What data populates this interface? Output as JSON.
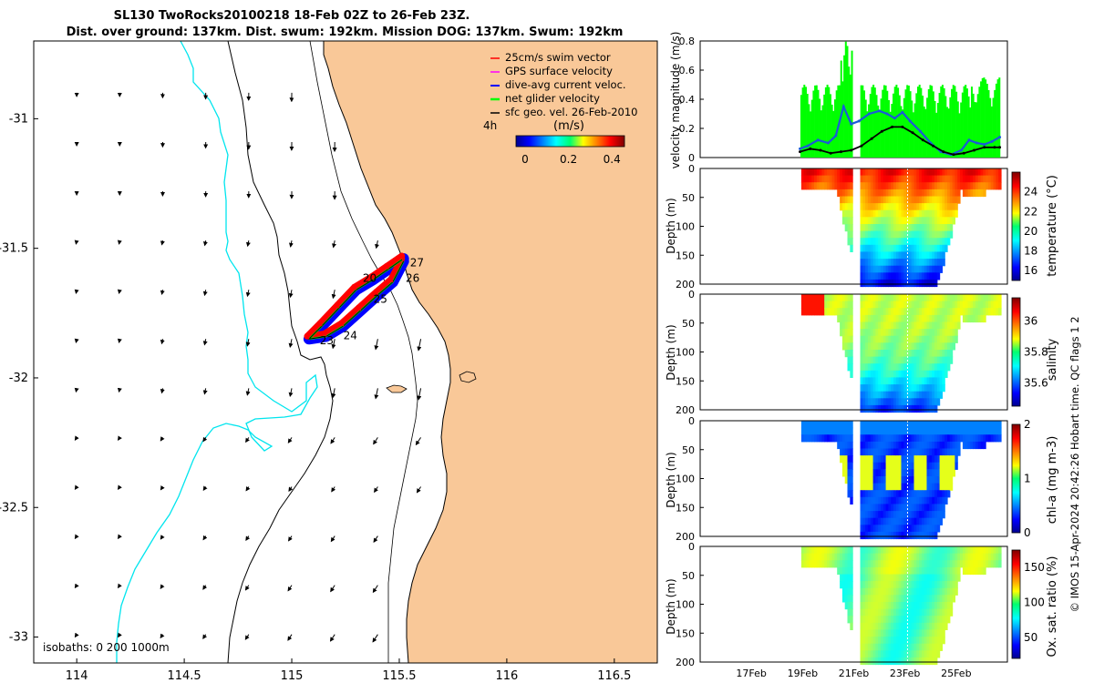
{
  "colors": {
    "land": "#f9c898",
    "swim": "#ff0000",
    "gps": "#ff00ff",
    "dive": "#0000ff",
    "net": "#00ff00",
    "geo": "#000000",
    "isobath200": "#00e5ee",
    "line": "#1a5bd8"
  },
  "chart_data": [
    {
      "type": "map",
      "title_line1": "SL130 TwoRocks20100218 18-Feb 02Z to 26-Feb 23Z.",
      "title_line2": "Dist. over ground: 137km. Dist. swum: 192km. Mission DOG: 137km. Swum: 192km",
      "xlim": [
        113.8,
        116.7
      ],
      "ylim": [
        -33.1,
        -30.7
      ],
      "xticks": [
        "114",
        "114.5",
        "115",
        "115.5",
        "116",
        "116.5"
      ],
      "yticks": [
        "-31",
        "-31.5",
        "-32",
        "-32.5",
        "-33"
      ],
      "legend": [
        {
          "label": "25cm/s swim vector",
          "color_key": "swim"
        },
        {
          "label": "GPS surface velocity",
          "color_key": "gps"
        },
        {
          "label": "dive-avg current veloc.",
          "color_key": "dive"
        },
        {
          "label": "net glider velocity",
          "color_key": "net"
        },
        {
          "label": "sfc geo. vel. 26-Feb-2010",
          "color_key": "geo"
        }
      ],
      "timestep_label": "4h",
      "colorbar_title": "(m/s)",
      "colorbar_ticks": [
        "0",
        "0.2",
        "0.4"
      ],
      "isobath_label": "isobaths: 0   200  1000m",
      "day_labels": [
        {
          "text": "20",
          "lon": 115.33,
          "lat": -31.63
        },
        {
          "text": "24",
          "lon": 115.24,
          "lat": -31.85
        },
        {
          "text": "23",
          "lon": 115.13,
          "lat": -31.87
        },
        {
          "text": "25",
          "lon": 115.38,
          "lat": -31.71
        },
        {
          "text": "26",
          "lon": 115.53,
          "lat": -31.63
        },
        {
          "text": "27",
          "lon": 115.55,
          "lat": -31.57
        }
      ],
      "track_points": [
        [
          115.52,
          -31.54
        ],
        [
          115.45,
          -31.58
        ],
        [
          115.38,
          -31.62
        ],
        [
          115.3,
          -31.66
        ],
        [
          115.22,
          -31.73
        ],
        [
          115.14,
          -31.8
        ],
        [
          115.08,
          -31.85
        ],
        [
          115.16,
          -31.84
        ],
        [
          115.24,
          -31.8
        ],
        [
          115.32,
          -31.74
        ],
        [
          115.4,
          -31.68
        ],
        [
          115.47,
          -31.63
        ],
        [
          115.52,
          -31.55
        ]
      ]
    },
    {
      "type": "line",
      "ylabel": "velocity magnitude (m/s)",
      "ylim": [
        0,
        0.8
      ],
      "yticks": [
        "0",
        "0.2",
        "0.4",
        "0.6",
        "0.8"
      ],
      "series": [
        {
          "name": "dive-avg current veloc.",
          "color_key": "line",
          "x": [
            18.9,
            19.2,
            19.6,
            20.0,
            20.3,
            20.6,
            20.9,
            21.2,
            21.6,
            22.0,
            22.3,
            22.6,
            22.9,
            23.2,
            23.6,
            24.0,
            24.4,
            24.8,
            25.2,
            25.5,
            25.8,
            26.1,
            26.4,
            26.7
          ],
          "y": [
            0.06,
            0.08,
            0.12,
            0.1,
            0.15,
            0.35,
            0.23,
            0.25,
            0.3,
            0.32,
            0.3,
            0.27,
            0.31,
            0.25,
            0.18,
            0.1,
            0.04,
            0.02,
            0.05,
            0.12,
            0.1,
            0.09,
            0.11,
            0.14
          ]
        },
        {
          "name": "net glider velocity",
          "color_key": "geo",
          "x": [
            18.9,
            19.3,
            19.7,
            20.1,
            20.5,
            20.9,
            21.3,
            21.7,
            22.1,
            22.5,
            22.9,
            23.3,
            23.7,
            24.1,
            24.5,
            24.9,
            25.3,
            25.7,
            26.1,
            26.5,
            26.7
          ],
          "y": [
            0.04,
            0.06,
            0.05,
            0.03,
            0.04,
            0.05,
            0.08,
            0.13,
            0.18,
            0.21,
            0.21,
            0.17,
            0.12,
            0.08,
            0.04,
            0.02,
            0.03,
            0.05,
            0.07,
            0.07,
            0.07
          ]
        }
      ]
    },
    {
      "type": "heatmap",
      "ylabel": "Depth (m)",
      "clabel": "temperature (°C)",
      "ylim": [
        0,
        200
      ],
      "yticks": [
        "0",
        "50",
        "100",
        "150",
        "200"
      ],
      "cticks": [
        "16",
        "18",
        "20",
        "22",
        "24"
      ],
      "crange": [
        15,
        26
      ],
      "surface": 24.5,
      "mid": 21.0,
      "deep": 16.0
    },
    {
      "type": "heatmap",
      "ylabel": "Depth (m)",
      "clabel": "salinity",
      "ylim": [
        0,
        200
      ],
      "yticks": [
        "0",
        "50",
        "100",
        "150",
        "200"
      ],
      "cticks": [
        "35.6",
        "35.8",
        "36"
      ],
      "crange": [
        35.45,
        36.15
      ],
      "surface": 35.85,
      "mid": 35.8,
      "deep": 35.55
    },
    {
      "type": "heatmap",
      "ylabel": "Depth (m)",
      "clabel": "chl-a (mg m-3)",
      "ylim": [
        0,
        200
      ],
      "yticks": [
        "0",
        "50",
        "100",
        "150",
        "200"
      ],
      "cticks": [
        "0",
        "1",
        "2"
      ],
      "crange": [
        0,
        2
      ],
      "surface": 0.3,
      "mid": 0.6,
      "deep": 0.2
    },
    {
      "type": "heatmap",
      "ylabel": "Depth (m)",
      "clabel": "Ox. sat. ratio (%)",
      "ylim": [
        0,
        200
      ],
      "yticks": [
        "0",
        "50",
        "100",
        "150",
        "200"
      ],
      "cticks": [
        "50",
        "100",
        "150"
      ],
      "crange": [
        20,
        175
      ],
      "surface": 100,
      "mid": 105,
      "deep": 95,
      "xticks": [
        "17Feb",
        "19Feb",
        "21Feb",
        "23Feb",
        "25Feb"
      ]
    }
  ],
  "side_note": "© IMOS 15-Apr-2024 20:42:26 Hobart time. QC flags 1  2"
}
